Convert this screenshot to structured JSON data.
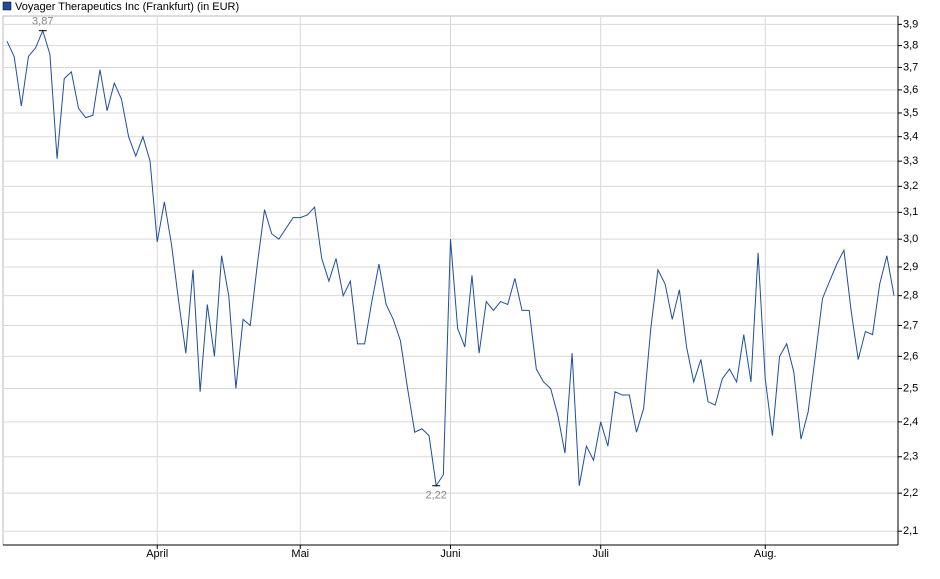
{
  "chart_data": {
    "type": "line",
    "title": "Voyager Therapeutics Inc (Frankfurt) (in EUR)",
    "log_scale": true,
    "grid": true,
    "legend": "top-left",
    "color": "#1f4e9c",
    "categories": [
      null,
      null,
      null,
      null,
      null,
      null,
      null,
      null,
      null,
      null,
      null,
      null,
      null,
      null,
      null,
      null,
      null,
      null,
      null,
      null,
      null,
      "April",
      null,
      null,
      null,
      null,
      null,
      null,
      null,
      null,
      null,
      null,
      null,
      null,
      null,
      null,
      null,
      null,
      null,
      null,
      null,
      "Mai",
      null,
      null,
      null,
      null,
      null,
      null,
      null,
      null,
      null,
      null,
      null,
      null,
      null,
      null,
      null,
      null,
      null,
      null,
      null,
      null,
      "Juni",
      null,
      null,
      null,
      null,
      null,
      null,
      null,
      null,
      null,
      null,
      null,
      null,
      null,
      null,
      null,
      null,
      null,
      null,
      null,
      null,
      "Juli",
      null,
      null,
      null,
      null,
      null,
      null,
      null,
      null,
      null,
      null,
      null,
      null,
      null,
      null,
      null,
      null,
      null,
      null,
      null,
      null,
      null,
      null,
      "Aug.",
      null,
      null,
      null,
      null,
      null,
      null,
      null,
      null,
      null,
      null,
      null,
      null,
      null,
      null,
      null,
      null,
      null,
      null
    ],
    "series": [
      {
        "name": "Voyager Therapeutics Inc (Frankfurt) (in EUR)",
        "color": "#1f4e9c",
        "values": [
          3.82,
          3.75,
          3.53,
          3.75,
          3.79,
          3.87,
          3.76,
          3.31,
          3.65,
          3.68,
          3.52,
          3.48,
          3.49,
          3.69,
          3.51,
          3.63,
          3.56,
          3.4,
          3.32,
          3.4,
          3.3,
          2.99,
          3.14,
          2.98,
          2.78,
          2.61,
          2.89,
          2.49,
          2.77,
          2.6,
          2.94,
          2.8,
          2.5,
          2.72,
          2.7,
          2.91,
          3.11,
          3.02,
          3.0,
          3.04,
          3.08,
          3.08,
          3.09,
          3.12,
          2.93,
          2.85,
          2.93,
          2.8,
          2.85,
          2.64,
          2.64,
          2.78,
          2.91,
          2.77,
          2.72,
          2.65,
          2.5,
          2.37,
          2.38,
          2.36,
          2.22,
          2.25,
          3.0,
          2.69,
          2.63,
          2.87,
          2.61,
          2.78,
          2.75,
          2.78,
          2.77,
          2.86,
          2.75,
          2.75,
          2.56,
          2.52,
          2.5,
          2.42,
          2.31,
          2.61,
          2.22,
          2.33,
          2.29,
          2.4,
          2.33,
          2.49,
          2.48,
          2.48,
          2.37,
          2.44,
          2.69,
          2.89,
          2.84,
          2.72,
          2.82,
          2.63,
          2.52,
          2.59,
          2.46,
          2.45,
          2.53,
          2.56,
          2.52,
          2.67,
          2.52,
          2.95,
          2.53,
          2.36,
          2.6,
          2.64,
          2.55,
          2.35,
          2.43,
          2.6,
          2.79,
          2.85,
          2.91,
          2.96,
          2.75,
          2.59,
          2.68,
          2.67,
          2.84,
          2.94,
          2.8
        ]
      }
    ],
    "annotations": [
      {
        "value": 3.87,
        "label": "3,87"
      },
      {
        "value": 2.22,
        "label": "2,22"
      }
    ],
    "ylim": [
      2.065,
      3.94
    ],
    "yticks": [
      {
        "value": 2.1,
        "label": "2,1"
      },
      {
        "value": 2.2,
        "label": "2,2"
      },
      {
        "value": 2.3,
        "label": "2,3"
      },
      {
        "value": 2.4,
        "label": "2,4"
      },
      {
        "value": 2.5,
        "label": "2,5"
      },
      {
        "value": 2.6,
        "label": "2,6"
      },
      {
        "value": 2.7,
        "label": "2,7"
      },
      {
        "value": 2.8,
        "label": "2,8"
      },
      {
        "value": 2.9,
        "label": "2,9"
      },
      {
        "value": 3.0,
        "label": "3,0"
      },
      {
        "value": 3.1,
        "label": "3,1"
      },
      {
        "value": 3.2,
        "label": "3,2"
      },
      {
        "value": 3.3,
        "label": "3,3"
      },
      {
        "value": 3.4,
        "label": "3,4"
      },
      {
        "value": 3.5,
        "label": "3,5"
      },
      {
        "value": 3.6,
        "label": "3,6"
      },
      {
        "value": 3.7,
        "label": "3,7"
      },
      {
        "value": 3.8,
        "label": "3,8"
      },
      {
        "value": 3.9,
        "label": "3,9"
      }
    ]
  }
}
